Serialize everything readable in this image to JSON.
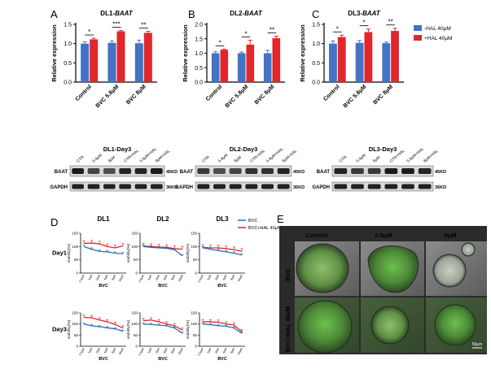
{
  "panel_letters": [
    "A",
    "B",
    "C",
    "D",
    "E"
  ],
  "bar_panels": [
    {
      "letter": "A",
      "title_prefix": "DL1-",
      "title_gene": "BAAT",
      "ylabel": "Relative expression",
      "ylim": [
        0,
        1.5
      ],
      "ticks": [
        "0.0",
        "0.5",
        "1.0",
        "1.5"
      ],
      "categories": [
        "Control",
        "BVC 5.8μM",
        "BVC 8μM"
      ],
      "sig": [
        "*",
        "***",
        "**"
      ]
    },
    {
      "letter": "B",
      "title_prefix": "DL2-",
      "title_gene": "BAAT",
      "ylabel": "Relative expression",
      "ylim": [
        0,
        2.0
      ],
      "ticks": [
        "0.0",
        "0.5",
        "1.0",
        "1.5",
        "2.0"
      ],
      "categories": [
        "Control",
        "BVC 5.8μM",
        "BVC 8μM"
      ],
      "sig": [
        "*",
        "*",
        "**"
      ]
    },
    {
      "letter": "C",
      "title_prefix": "DL3-",
      "title_gene": "BAAT",
      "ylabel": "Relative expression",
      "ylim": [
        0,
        1.5
      ],
      "ticks": [
        "0.0",
        "0.5",
        "1.0",
        "1.5"
      ],
      "categories": [
        "Control",
        "BVC 5.8μM",
        "BVC 8μM"
      ],
      "sig": [
        "*",
        "*",
        "**"
      ]
    }
  ],
  "bar_legend": [
    {
      "label": "-HAL 40μM",
      "color": "#4472c4"
    },
    {
      "label": "+HAL 40μM",
      "color": "#e0272b"
    }
  ],
  "colors": {
    "blue": "#4472c4",
    "red": "#e0272b",
    "legend_blue": "#2b6cb0"
  },
  "chart_data": [
    {
      "type": "bar",
      "panel": "A",
      "categories": [
        "Control",
        "BVC 5.8μM",
        "BVC 8μM"
      ],
      "series": [
        {
          "name": "-HAL 40μM",
          "values": [
            1.0,
            1.02,
            1.01
          ],
          "errors": [
            0.05,
            0.05,
            0.08
          ]
        },
        {
          "name": "+HAL 40μM",
          "values": [
            1.11,
            1.32,
            1.28
          ],
          "errors": [
            0.03,
            0.02,
            0.04
          ]
        }
      ],
      "ylim": [
        0,
        1.5
      ]
    },
    {
      "type": "bar",
      "panel": "B",
      "categories": [
        "Control",
        "BVC 5.8μM",
        "BVC 8μM"
      ],
      "series": [
        {
          "name": "-HAL 40μM",
          "values": [
            1.0,
            1.0,
            1.0
          ],
          "errors": [
            0.05,
            0.04,
            0.1
          ]
        },
        {
          "name": "+HAL 40μM",
          "values": [
            1.12,
            1.3,
            1.52
          ],
          "errors": [
            0.02,
            0.15,
            0.07
          ]
        }
      ],
      "ylim": [
        0,
        2.0
      ]
    },
    {
      "type": "bar",
      "panel": "C",
      "categories": [
        "Control",
        "BVC 5.8μM",
        "BVC 8μM"
      ],
      "series": [
        {
          "name": "-HAL 40μM",
          "values": [
            1.0,
            1.02,
            1.01
          ],
          "errors": [
            0.07,
            0.06,
            0.03
          ]
        },
        {
          "name": "+HAL 40μM",
          "values": [
            1.17,
            1.3,
            1.33
          ],
          "errors": [
            0.05,
            0.08,
            0.07
          ]
        }
      ],
      "ylim": [
        0,
        1.5
      ]
    },
    {
      "type": "line",
      "panel": "D",
      "x": [
        "0.5μM",
        "1μM",
        "2μM",
        "4μM",
        "8μM",
        "16μM"
      ],
      "ylim": [
        0,
        150
      ],
      "plots": [
        {
          "row": "Day1",
          "col": "DL1",
          "bvc": [
            100,
            90,
            82,
            80,
            75,
            73
          ],
          "hal": [
            112,
            113,
            110,
            100,
            95,
            102
          ]
        },
        {
          "row": "Day1",
          "col": "DL2",
          "bvc": [
            100,
            97,
            95,
            93,
            88,
            65
          ],
          "hal": [
            102,
            100,
            98,
            97,
            92,
            90
          ]
        },
        {
          "row": "Day1",
          "col": "DL3",
          "bvc": [
            95,
            90,
            85,
            80,
            75,
            68
          ],
          "hal": [
            97,
            95,
            95,
            92,
            88,
            82
          ]
        },
        {
          "row": "Day3",
          "col": "DL1",
          "bvc": [
            100,
            92,
            88,
            83,
            78,
            68
          ],
          "hal": [
            130,
            128,
            118,
            110,
            98,
            82
          ]
        },
        {
          "row": "Day3",
          "col": "DL2",
          "bvc": [
            100,
            98,
            95,
            92,
            82,
            58
          ],
          "hal": [
            115,
            118,
            110,
            100,
            92,
            72
          ]
        },
        {
          "row": "Day3",
          "col": "DL3",
          "bvc": [
            100,
            97,
            92,
            90,
            82,
            58
          ],
          "hal": [
            110,
            110,
            108,
            100,
            95,
            65
          ]
        }
      ]
    }
  ],
  "blots": {
    "panels": [
      {
        "title": "DL1-Day3",
        "lanes": [
          "CTR",
          "5.8μM",
          "8μM",
          "CTR+HAL",
          "5.8μM+HAL",
          "8μM+HAL"
        ]
      },
      {
        "title": "DL2-Day3",
        "lanes": [
          "CTR",
          "5.8μM",
          "8μM",
          "CTR+HAL",
          "5.8μM+HAL",
          "8μM+HAL"
        ]
      },
      {
        "title": "DL3-Day3",
        "lanes": [
          "CTR",
          "5.8μM",
          "8μM",
          "CTR+HAL",
          "5.8μM+HAL",
          "8μM+HAL"
        ]
      }
    ],
    "row_labels": [
      "BAAT",
      "GAPDH"
    ],
    "kd_labels": [
      "45KD",
      "36KD"
    ]
  },
  "line_panels": {
    "cols": [
      "DL1",
      "DL2",
      "DL3"
    ],
    "rows": [
      "Day1",
      "Day3"
    ],
    "ylabel": "viability(%)",
    "xlabel": "BVC",
    "ticks": [
      "0",
      "50",
      "100",
      "150"
    ],
    "xticks": [
      "0.5μM",
      "1μM",
      "2μM",
      "4μM",
      "8μM",
      "16μM"
    ],
    "legend": [
      "BVC",
      "BVC+HAL 40μM"
    ]
  },
  "images": {
    "cols": [
      "Control",
      "5.8μM",
      "8μM"
    ],
    "rows": [
      "BVC",
      "BVC+HAL 40μM"
    ],
    "scale": "50μm"
  }
}
